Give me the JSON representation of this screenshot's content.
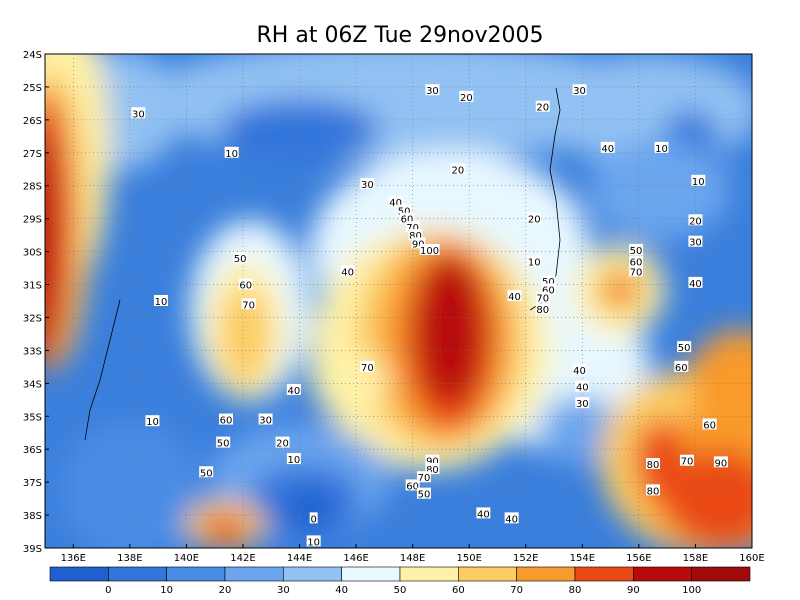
{
  "chart_data": {
    "type": "heatmap",
    "title": "RH at 06Z Tue 29nov2005",
    "x_ticks": [
      "136E",
      "138E",
      "140E",
      "142E",
      "144E",
      "146E",
      "148E",
      "150E",
      "152E",
      "154E",
      "156E",
      "158E",
      "160E"
    ],
    "x_tick_values": [
      136,
      138,
      140,
      142,
      144,
      146,
      148,
      150,
      152,
      154,
      156,
      158,
      160
    ],
    "y_ticks": [
      "24S",
      "25S",
      "26S",
      "27S",
      "28S",
      "29S",
      "30S",
      "31S",
      "32S",
      "33S",
      "34S",
      "35S",
      "36S",
      "37S",
      "38S",
      "39S"
    ],
    "y_tick_values": [
      24,
      25,
      26,
      27,
      28,
      29,
      30,
      31,
      32,
      33,
      34,
      35,
      36,
      37,
      38,
      39
    ],
    "xlim": [
      135,
      160
    ],
    "ylim": [
      39,
      24
    ],
    "grid": true,
    "colorbar": {
      "labels": [
        "0",
        "10",
        "20",
        "30",
        "40",
        "50",
        "60",
        "70",
        "80",
        "90",
        "100"
      ],
      "levels": [
        0,
        10,
        20,
        30,
        40,
        50,
        60,
        70,
        80,
        90,
        100
      ],
      "colors": [
        "#1f5fcf",
        "#3275db",
        "#4a8de6",
        "#6aa5ee",
        "#92c1f3",
        "#e8f8ff",
        "#fff2a8",
        "#fccb62",
        "#f99a2c",
        "#ea4a16",
        "#b80a0a",
        "#a00a0a"
      ]
    },
    "contour_labels": [
      {
        "text": "30",
        "lon": 138.3,
        "lat": 25.8
      },
      {
        "text": "10",
        "lon": 141.6,
        "lat": 27.0
      },
      {
        "text": "30",
        "lon": 146.4,
        "lat": 27.95
      },
      {
        "text": "20",
        "lon": 149.6,
        "lat": 27.5
      },
      {
        "text": "30",
        "lon": 148.7,
        "lat": 25.1
      },
      {
        "text": "20",
        "lon": 149.9,
        "lat": 25.3
      },
      {
        "text": "20",
        "lon": 152.6,
        "lat": 25.6
      },
      {
        "text": "30",
        "lon": 153.9,
        "lat": 25.1
      },
      {
        "text": "40",
        "lon": 154.9,
        "lat": 26.85
      },
      {
        "text": "10",
        "lon": 156.8,
        "lat": 26.85
      },
      {
        "text": "10",
        "lon": 158.1,
        "lat": 27.85
      },
      {
        "text": "20",
        "lon": 158.0,
        "lat": 29.05
      },
      {
        "text": "30",
        "lon": 158.0,
        "lat": 29.7
      },
      {
        "text": "40",
        "lon": 158.0,
        "lat": 30.95
      },
      {
        "text": "40",
        "lon": 147.4,
        "lat": 28.5
      },
      {
        "text": "50",
        "lon": 147.7,
        "lat": 28.75
      },
      {
        "text": "60",
        "lon": 147.8,
        "lat": 29.0
      },
      {
        "text": "70",
        "lon": 148.0,
        "lat": 29.25
      },
      {
        "text": "80",
        "lon": 148.1,
        "lat": 29.5
      },
      {
        "text": "90",
        "lon": 148.2,
        "lat": 29.75
      },
      {
        "text": "100",
        "lon": 148.6,
        "lat": 29.95
      },
      {
        "text": "20",
        "lon": 152.3,
        "lat": 29.0
      },
      {
        "text": "10",
        "lon": 152.3,
        "lat": 30.3
      },
      {
        "text": "40",
        "lon": 145.7,
        "lat": 30.6
      },
      {
        "text": "50",
        "lon": 141.9,
        "lat": 30.2
      },
      {
        "text": "60",
        "lon": 142.1,
        "lat": 31.0
      },
      {
        "text": "70",
        "lon": 142.2,
        "lat": 31.6
      },
      {
        "text": "10",
        "lon": 139.1,
        "lat": 31.5
      },
      {
        "text": "50",
        "lon": 155.9,
        "lat": 29.95
      },
      {
        "text": "60",
        "lon": 155.9,
        "lat": 30.3
      },
      {
        "text": "70",
        "lon": 155.9,
        "lat": 30.6
      },
      {
        "text": "50",
        "lon": 152.8,
        "lat": 30.9
      },
      {
        "text": "60",
        "lon": 152.8,
        "lat": 31.15
      },
      {
        "text": "70",
        "lon": 152.6,
        "lat": 31.4
      },
      {
        "text": "40",
        "lon": 151.6,
        "lat": 31.35
      },
      {
        "text": "80",
        "lon": 152.6,
        "lat": 31.75
      },
      {
        "text": "70",
        "lon": 146.4,
        "lat": 33.5
      },
      {
        "text": "40",
        "lon": 153.9,
        "lat": 33.6
      },
      {
        "text": "40",
        "lon": 154.0,
        "lat": 34.1
      },
      {
        "text": "30",
        "lon": 154.0,
        "lat": 34.6
      },
      {
        "text": "50",
        "lon": 157.6,
        "lat": 32.9
      },
      {
        "text": "60",
        "lon": 157.5,
        "lat": 33.5
      },
      {
        "text": "60",
        "lon": 158.5,
        "lat": 35.25
      },
      {
        "text": "40",
        "lon": 143.8,
        "lat": 34.2
      },
      {
        "text": "60",
        "lon": 141.4,
        "lat": 35.1
      },
      {
        "text": "30",
        "lon": 142.8,
        "lat": 35.1
      },
      {
        "text": "10",
        "lon": 138.8,
        "lat": 35.15
      },
      {
        "text": "50",
        "lon": 141.3,
        "lat": 35.8
      },
      {
        "text": "20",
        "lon": 143.4,
        "lat": 35.8
      },
      {
        "text": "10",
        "lon": 143.8,
        "lat": 36.3
      },
      {
        "text": "50",
        "lon": 140.7,
        "lat": 36.7
      },
      {
        "text": "90",
        "lon": 148.7,
        "lat": 36.35
      },
      {
        "text": "80",
        "lon": 148.7,
        "lat": 36.6
      },
      {
        "text": "70",
        "lon": 148.4,
        "lat": 36.85
      },
      {
        "text": "60",
        "lon": 148.0,
        "lat": 37.1
      },
      {
        "text": "50",
        "lon": 148.4,
        "lat": 37.35
      },
      {
        "text": "80",
        "lon": 156.5,
        "lat": 36.45
      },
      {
        "text": "70",
        "lon": 157.7,
        "lat": 36.35
      },
      {
        "text": "90",
        "lon": 158.9,
        "lat": 36.4
      },
      {
        "text": "80",
        "lon": 156.5,
        "lat": 37.25
      },
      {
        "text": "0",
        "lon": 144.5,
        "lat": 38.1
      },
      {
        "text": "10",
        "lon": 144.5,
        "lat": 38.8
      },
      {
        "text": "40",
        "lon": 150.5,
        "lat": 37.95
      },
      {
        "text": "40",
        "lon": 151.5,
        "lat": 38.1
      }
    ]
  }
}
